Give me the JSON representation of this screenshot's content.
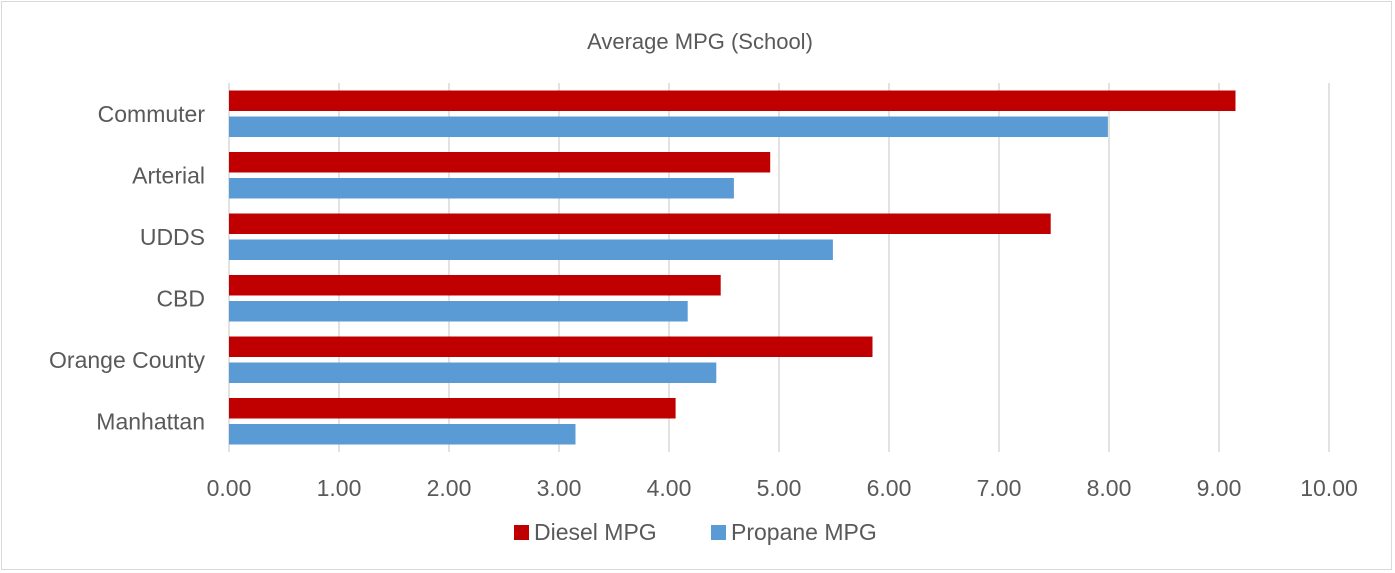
{
  "chart_data": {
    "type": "bar",
    "orientation": "horizontal",
    "title": "Average MPG (School)",
    "xlabel": "",
    "ylabel": "",
    "categories": [
      "Commuter",
      "Arterial",
      "UDDS",
      "CBD",
      "Orange County",
      "Manhattan"
    ],
    "series": [
      {
        "name": "Diesel MPG",
        "color": "#c00000",
        "values": [
          9.15,
          4.92,
          7.47,
          4.47,
          5.85,
          4.06
        ]
      },
      {
        "name": "Propane MPG",
        "color": "#5b9bd5",
        "values": [
          7.99,
          4.59,
          5.49,
          4.17,
          4.43,
          3.15
        ]
      }
    ],
    "xlim": [
      0,
      10
    ],
    "ticks": [
      "0.00",
      "1.00",
      "2.00",
      "3.00",
      "4.00",
      "5.00",
      "6.00",
      "7.00",
      "8.00",
      "9.00",
      "10.00"
    ],
    "grid": true,
    "legend_position": "bottom"
  }
}
